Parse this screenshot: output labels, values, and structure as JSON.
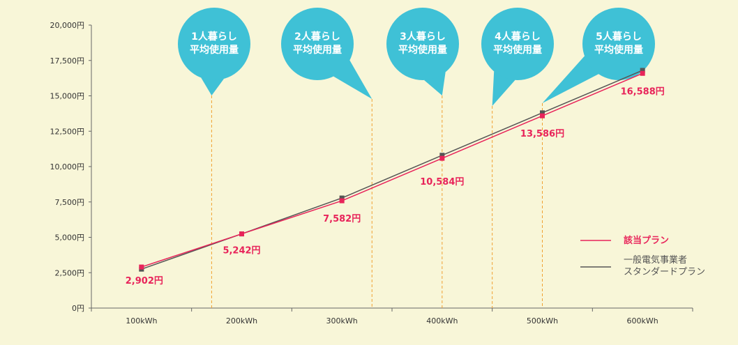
{
  "chart_data": {
    "type": "line",
    "x": [
      "100kWh",
      "200kWh",
      "300kWh",
      "400kWh",
      "500kWh",
      "600kWh"
    ],
    "ylim": [
      0,
      20000
    ],
    "yticks": [
      0,
      2500,
      5000,
      7500,
      10000,
      12500,
      15000,
      17500,
      20000
    ],
    "ytick_labels": [
      "0円",
      "2,500円",
      "5,000円",
      "7,500円",
      "10,000円",
      "12,500円",
      "15,000円",
      "17,500円",
      "20,000円"
    ],
    "grid": false,
    "legend_position": "right",
    "series": [
      {
        "name": "該当プラン",
        "color": "#e8245a",
        "values": [
          2902,
          5242,
          7582,
          10584,
          13586,
          16588
        ],
        "labels": [
          "2,902円",
          "5,242円",
          "7,582円",
          "10,584円",
          "13,586円",
          "16,588円"
        ]
      },
      {
        "name": "一般電気事業者 スタンダードプラン",
        "name_lines": [
          "一般電気事業者",
          "スタンダードプラン"
        ],
        "color": "#555555",
        "values": [
          2750,
          5242,
          7780,
          10800,
          13800,
          16800
        ]
      }
    ],
    "annotations": [
      {
        "line1": "1人暮らし",
        "line2": "平均使用量",
        "x_kwh": 170
      },
      {
        "line1": "2人暮らし",
        "line2": "平均使用量",
        "x_kwh": 330
      },
      {
        "line1": "3人暮らし",
        "line2": "平均使用量",
        "x_kwh": 400
      },
      {
        "line1": "4人暮らし",
        "line2": "平均使用量",
        "x_kwh": 450
      },
      {
        "line1": "5人暮らし",
        "line2": "平均使用量",
        "x_kwh": 500
      }
    ],
    "annotation_color": "#3fc1d6",
    "marker_line_color": "#f0a030"
  }
}
